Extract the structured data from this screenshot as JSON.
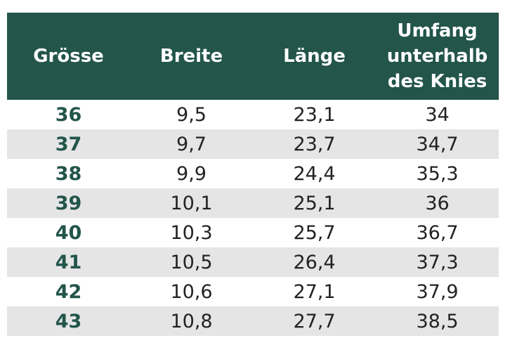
{
  "table": {
    "headers": [
      "Grösse",
      "Breite",
      "Länge",
      "Umfang\nunterhalb\ndes Knies"
    ],
    "rows": [
      {
        "size": "36",
        "breite": "9,5",
        "laenge": "23,1",
        "umfang": "34"
      },
      {
        "size": "37",
        "breite": "9,7",
        "laenge": "23,7",
        "umfang": "34,7"
      },
      {
        "size": "38",
        "breite": "9,9",
        "laenge": "24,4",
        "umfang": "35,3"
      },
      {
        "size": "39",
        "breite": "10,1",
        "laenge": "25,1",
        "umfang": "36"
      },
      {
        "size": "40",
        "breite": "10,3",
        "laenge": "25,7",
        "umfang": "36,7"
      },
      {
        "size": "41",
        "breite": "10,5",
        "laenge": "26,4",
        "umfang": "37,3"
      },
      {
        "size": "42",
        "breite": "10,6",
        "laenge": "27,1",
        "umfang": "37,9"
      },
      {
        "size": "43",
        "breite": "10,8",
        "laenge": "27,7",
        "umfang": "38,5"
      }
    ]
  },
  "colors": {
    "header_bg": "#23554a",
    "header_text": "#ffffff",
    "size_text": "#23554a",
    "alt_row_bg": "#e5e5e5"
  }
}
